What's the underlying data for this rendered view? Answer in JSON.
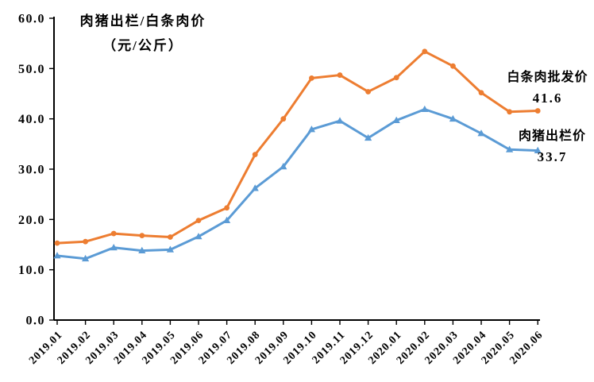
{
  "chart": {
    "title_line1": "肉猪出栏/白条肉价",
    "title_line2": "（元/公斤）",
    "annotations": {
      "wholesale_label": "白条肉批发价",
      "wholesale_value": "41.6",
      "pig_label": "肉猪出栏价",
      "pig_value": "33.7"
    }
  },
  "chart_data": {
    "type": "line",
    "title": "肉猪出栏/白条肉价",
    "subtitle": "（元/公斤）",
    "xlabel": "",
    "ylabel": "元/公斤",
    "ylim": [
      0,
      60
    ],
    "ytick_step": 10,
    "ytick_labels": [
      "0.0",
      "10.0",
      "20.0",
      "30.0",
      "40.0",
      "50.0",
      "60.0"
    ],
    "grid": false,
    "legend_position": "end-of-line-annotations",
    "categories": [
      "2019.01",
      "2019.02",
      "2019.03",
      "2019.04",
      "2019.05",
      "2019.06",
      "2019.07",
      "2019.08",
      "2019.09",
      "2019.10",
      "2019.11",
      "2019.12",
      "2020.01",
      "2020.02",
      "2020.03",
      "2020.04",
      "2020.05",
      "2020.06"
    ],
    "series": [
      {
        "name": "白条肉批发价",
        "color": "#ED7D31",
        "marker": "circle",
        "values": [
          15.3,
          15.6,
          17.2,
          16.8,
          16.5,
          19.8,
          22.3,
          32.9,
          40.0,
          48.1,
          48.7,
          45.4,
          48.2,
          53.4,
          50.5,
          45.2,
          41.4,
          41.6
        ],
        "end_label": "41.6"
      },
      {
        "name": "肉猪出栏价",
        "color": "#5B9BD5",
        "marker": "triangle",
        "values": [
          12.8,
          12.2,
          14.4,
          13.8,
          14.0,
          16.6,
          19.8,
          26.2,
          30.5,
          37.9,
          39.6,
          36.2,
          39.7,
          41.9,
          40.0,
          37.1,
          33.9,
          33.7
        ],
        "end_label": "33.7"
      }
    ],
    "axis_color": "#000000",
    "background_color": "#ffffff"
  }
}
